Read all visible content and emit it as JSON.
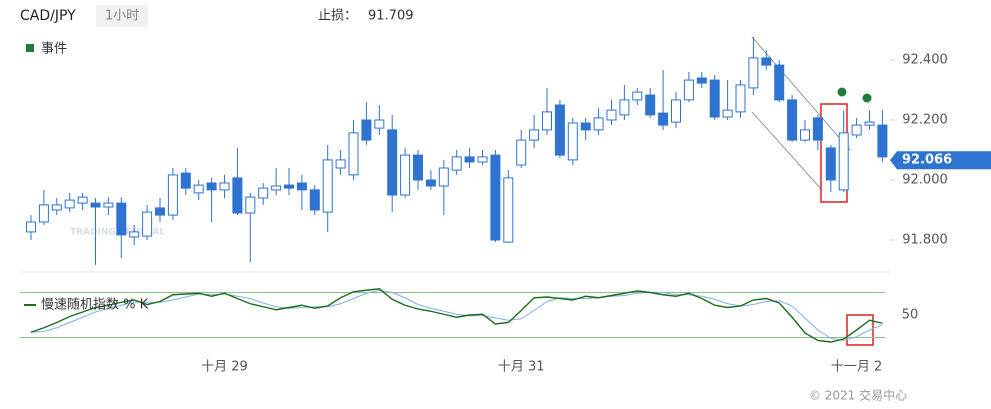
{
  "header": {
    "symbol": "CAD/JPY",
    "interval": "1小时",
    "stop_label": "止损：",
    "stop_value": 91.709,
    "events": "事件",
    "copyright": "© 2021 交易中心",
    "watermark": "TRADING CENTRAL"
  },
  "chart_data": [
    {
      "type": "candlestick",
      "color": "#2f73d1",
      "open": [
        91.827,
        91.86,
        91.9,
        91.907,
        91.923,
        91.923,
        91.91,
        91.923,
        91.81,
        91.813,
        91.907,
        91.883,
        92.023,
        91.957,
        91.99,
        91.967,
        92.007,
        91.89,
        91.94,
        91.967,
        91.983,
        91.99,
        91.967,
        91.893,
        92.04,
        92.017,
        92.2,
        92.173,
        92.167,
        91.95,
        92.083,
        92.0,
        91.98,
        92.033,
        92.077,
        92.06,
        92.083,
        91.793,
        92.05,
        92.133,
        92.167,
        92.25,
        92.067,
        92.19,
        92.167,
        92.2,
        92.217,
        92.267,
        92.283,
        92.223,
        92.193,
        92.267,
        92.34,
        92.333,
        92.21,
        92.227,
        92.307,
        92.407,
        92.383,
        92.267,
        92.133,
        92.207,
        92.107,
        91.967,
        92.15,
        92.183,
        92.183
      ],
      "high": [
        91.883,
        91.967,
        91.94,
        91.957,
        91.957,
        91.94,
        91.943,
        91.943,
        91.85,
        91.917,
        91.94,
        92.04,
        92.04,
        92.0,
        92.007,
        92.017,
        92.107,
        91.957,
        91.99,
        92.04,
        92.04,
        92.017,
        91.983,
        92.117,
        92.1,
        92.2,
        92.26,
        92.25,
        92.217,
        92.107,
        92.1,
        92.033,
        92.067,
        92.1,
        92.107,
        92.1,
        92.1,
        92.033,
        92.167,
        92.217,
        92.307,
        92.267,
        92.207,
        92.207,
        92.24,
        92.267,
        92.317,
        92.307,
        92.307,
        92.367,
        92.293,
        92.36,
        92.36,
        92.35,
        92.333,
        92.333,
        92.477,
        92.433,
        92.4,
        92.283,
        92.2,
        92.217,
        92.117,
        92.233,
        92.207,
        92.233,
        92.233
      ],
      "low": [
        91.8,
        91.85,
        91.883,
        91.893,
        91.9,
        91.717,
        91.883,
        91.74,
        91.783,
        91.8,
        91.86,
        91.867,
        91.95,
        91.933,
        91.86,
        91.94,
        91.883,
        91.727,
        91.917,
        91.95,
        91.95,
        91.9,
        91.883,
        91.827,
        92.017,
        92.0,
        92.117,
        92.15,
        91.893,
        91.94,
        91.967,
        91.967,
        91.883,
        92.017,
        92.04,
        92.05,
        91.793,
        91.79,
        92.04,
        92.107,
        92.15,
        92.073,
        92.05,
        92.133,
        92.15,
        92.183,
        92.2,
        92.25,
        92.207,
        92.167,
        92.173,
        92.26,
        92.307,
        92.2,
        92.2,
        92.207,
        92.283,
        92.367,
        92.26,
        92.127,
        92.127,
        92.1,
        91.96,
        91.96,
        92.14,
        92.167,
        92.06
      ],
      "close": [
        91.86,
        91.917,
        91.917,
        91.933,
        91.943,
        91.91,
        91.923,
        91.817,
        91.827,
        91.893,
        91.883,
        92.017,
        91.973,
        91.983,
        91.967,
        91.99,
        91.89,
        91.943,
        91.973,
        91.98,
        91.973,
        91.967,
        91.9,
        92.067,
        92.067,
        92.157,
        92.133,
        92.2,
        91.95,
        92.083,
        92.0,
        91.98,
        92.04,
        92.077,
        92.06,
        92.077,
        91.8,
        92.007,
        92.133,
        92.167,
        92.227,
        92.083,
        92.19,
        92.167,
        92.207,
        92.233,
        92.267,
        92.293,
        92.217,
        92.183,
        92.267,
        92.333,
        92.323,
        92.21,
        92.233,
        92.317,
        92.407,
        92.383,
        92.267,
        92.133,
        92.167,
        92.133,
        92.0,
        92.157,
        92.183,
        92.193,
        92.077
      ],
      "ylim": [
        91.7,
        92.5
      ],
      "yticks": [
        {
          "value": 91.8,
          "label": "91.800"
        },
        {
          "value": 92.0,
          "label": "92.000"
        },
        {
          "value": 92.2,
          "label": "92.200"
        },
        {
          "value": 92.4,
          "label": "92.400"
        }
      ],
      "last_price": 92.066
    },
    {
      "type": "line",
      "categories": [
        null,
        null,
        null,
        null,
        null,
        null,
        null,
        null,
        null,
        null,
        null,
        null,
        null,
        null,
        null,
        "十月 29",
        null,
        null,
        null,
        null,
        null,
        null,
        null,
        null,
        null,
        null,
        null,
        null,
        null,
        null,
        null,
        null,
        null,
        null,
        null,
        null,
        null,
        null,
        "十月 31",
        null,
        null,
        null,
        null,
        null,
        null,
        null,
        null,
        null,
        null,
        null,
        null,
        null,
        null,
        null,
        null,
        null,
        null,
        null,
        null,
        null,
        null,
        null,
        null,
        null,
        "十一月 2",
        null,
        null
      ],
      "series": [
        {
          "name": "慢速随机指数 % K",
          "color": "#1d6b1d",
          "values": [
            27,
            33,
            40,
            48,
            54,
            60,
            63,
            67,
            70,
            64,
            68,
            77,
            78,
            79,
            75,
            79,
            72,
            65,
            61,
            57,
            60,
            63,
            59,
            62,
            73,
            81,
            83,
            85,
            71,
            63,
            58,
            55,
            51,
            47,
            50,
            51,
            38,
            40,
            56,
            73,
            74,
            72,
            70,
            75,
            73,
            76,
            79,
            82,
            80,
            77,
            75,
            79,
            72,
            63,
            60,
            62,
            70,
            72,
            66,
            47,
            26,
            16,
            14,
            18,
            30,
            43,
            39
          ]
        },
        {
          "color": "#7fb3e8",
          "values": [
            27,
            28,
            33,
            40,
            47,
            54,
            59,
            63,
            67,
            67,
            67,
            70,
            74,
            78,
            77,
            78,
            75,
            72,
            66,
            61,
            59,
            60,
            61,
            61,
            65,
            72,
            79,
            83,
            80,
            73,
            64,
            59,
            55,
            51,
            49,
            49,
            46,
            43,
            45,
            56,
            68,
            73,
            72,
            72,
            73,
            75,
            76,
            79,
            80,
            80,
            77,
            77,
            75,
            71,
            65,
            62,
            64,
            68,
            69,
            62,
            46,
            30,
            19,
            16,
            21,
            30,
            37
          ]
        }
      ],
      "ylim": [
        10,
        90
      ],
      "yticks": [
        50
      ],
      "levels": [
        20,
        80
      ],
      "level_color": "#8cc08c"
    }
  ]
}
